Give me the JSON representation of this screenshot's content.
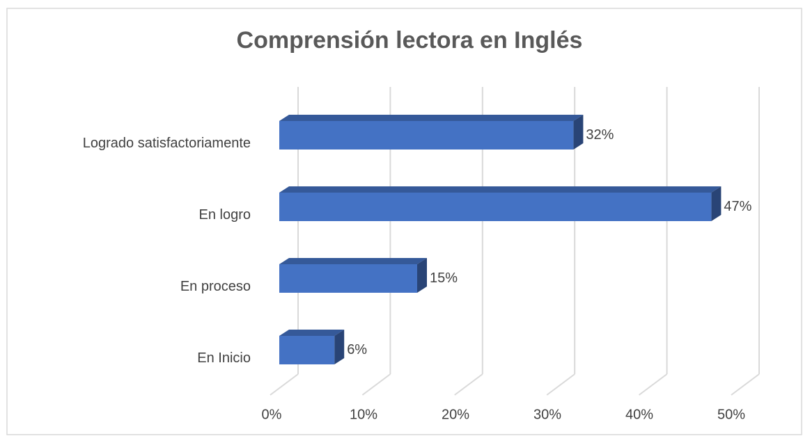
{
  "chart_data": {
    "type": "bar3d_horizontal",
    "title": "Comprensión lectora en Inglés",
    "categories": [
      "Logrado satisfactoriamente",
      "En logro",
      "En proceso",
      "En Inicio"
    ],
    "values": [
      32,
      47,
      15,
      6
    ],
    "value_labels": [
      "32%",
      "47%",
      "15%",
      "6%"
    ],
    "color": "#4472c4",
    "xlim": [
      0,
      50
    ],
    "xticks": [
      {
        "value": 0,
        "label": "0%"
      },
      {
        "value": 10,
        "label": "10%"
      },
      {
        "value": 20,
        "label": "20%"
      },
      {
        "value": 30,
        "label": "30%"
      },
      {
        "value": 40,
        "label": "40%"
      },
      {
        "value": 50,
        "label": "50%"
      }
    ],
    "grid": true
  }
}
